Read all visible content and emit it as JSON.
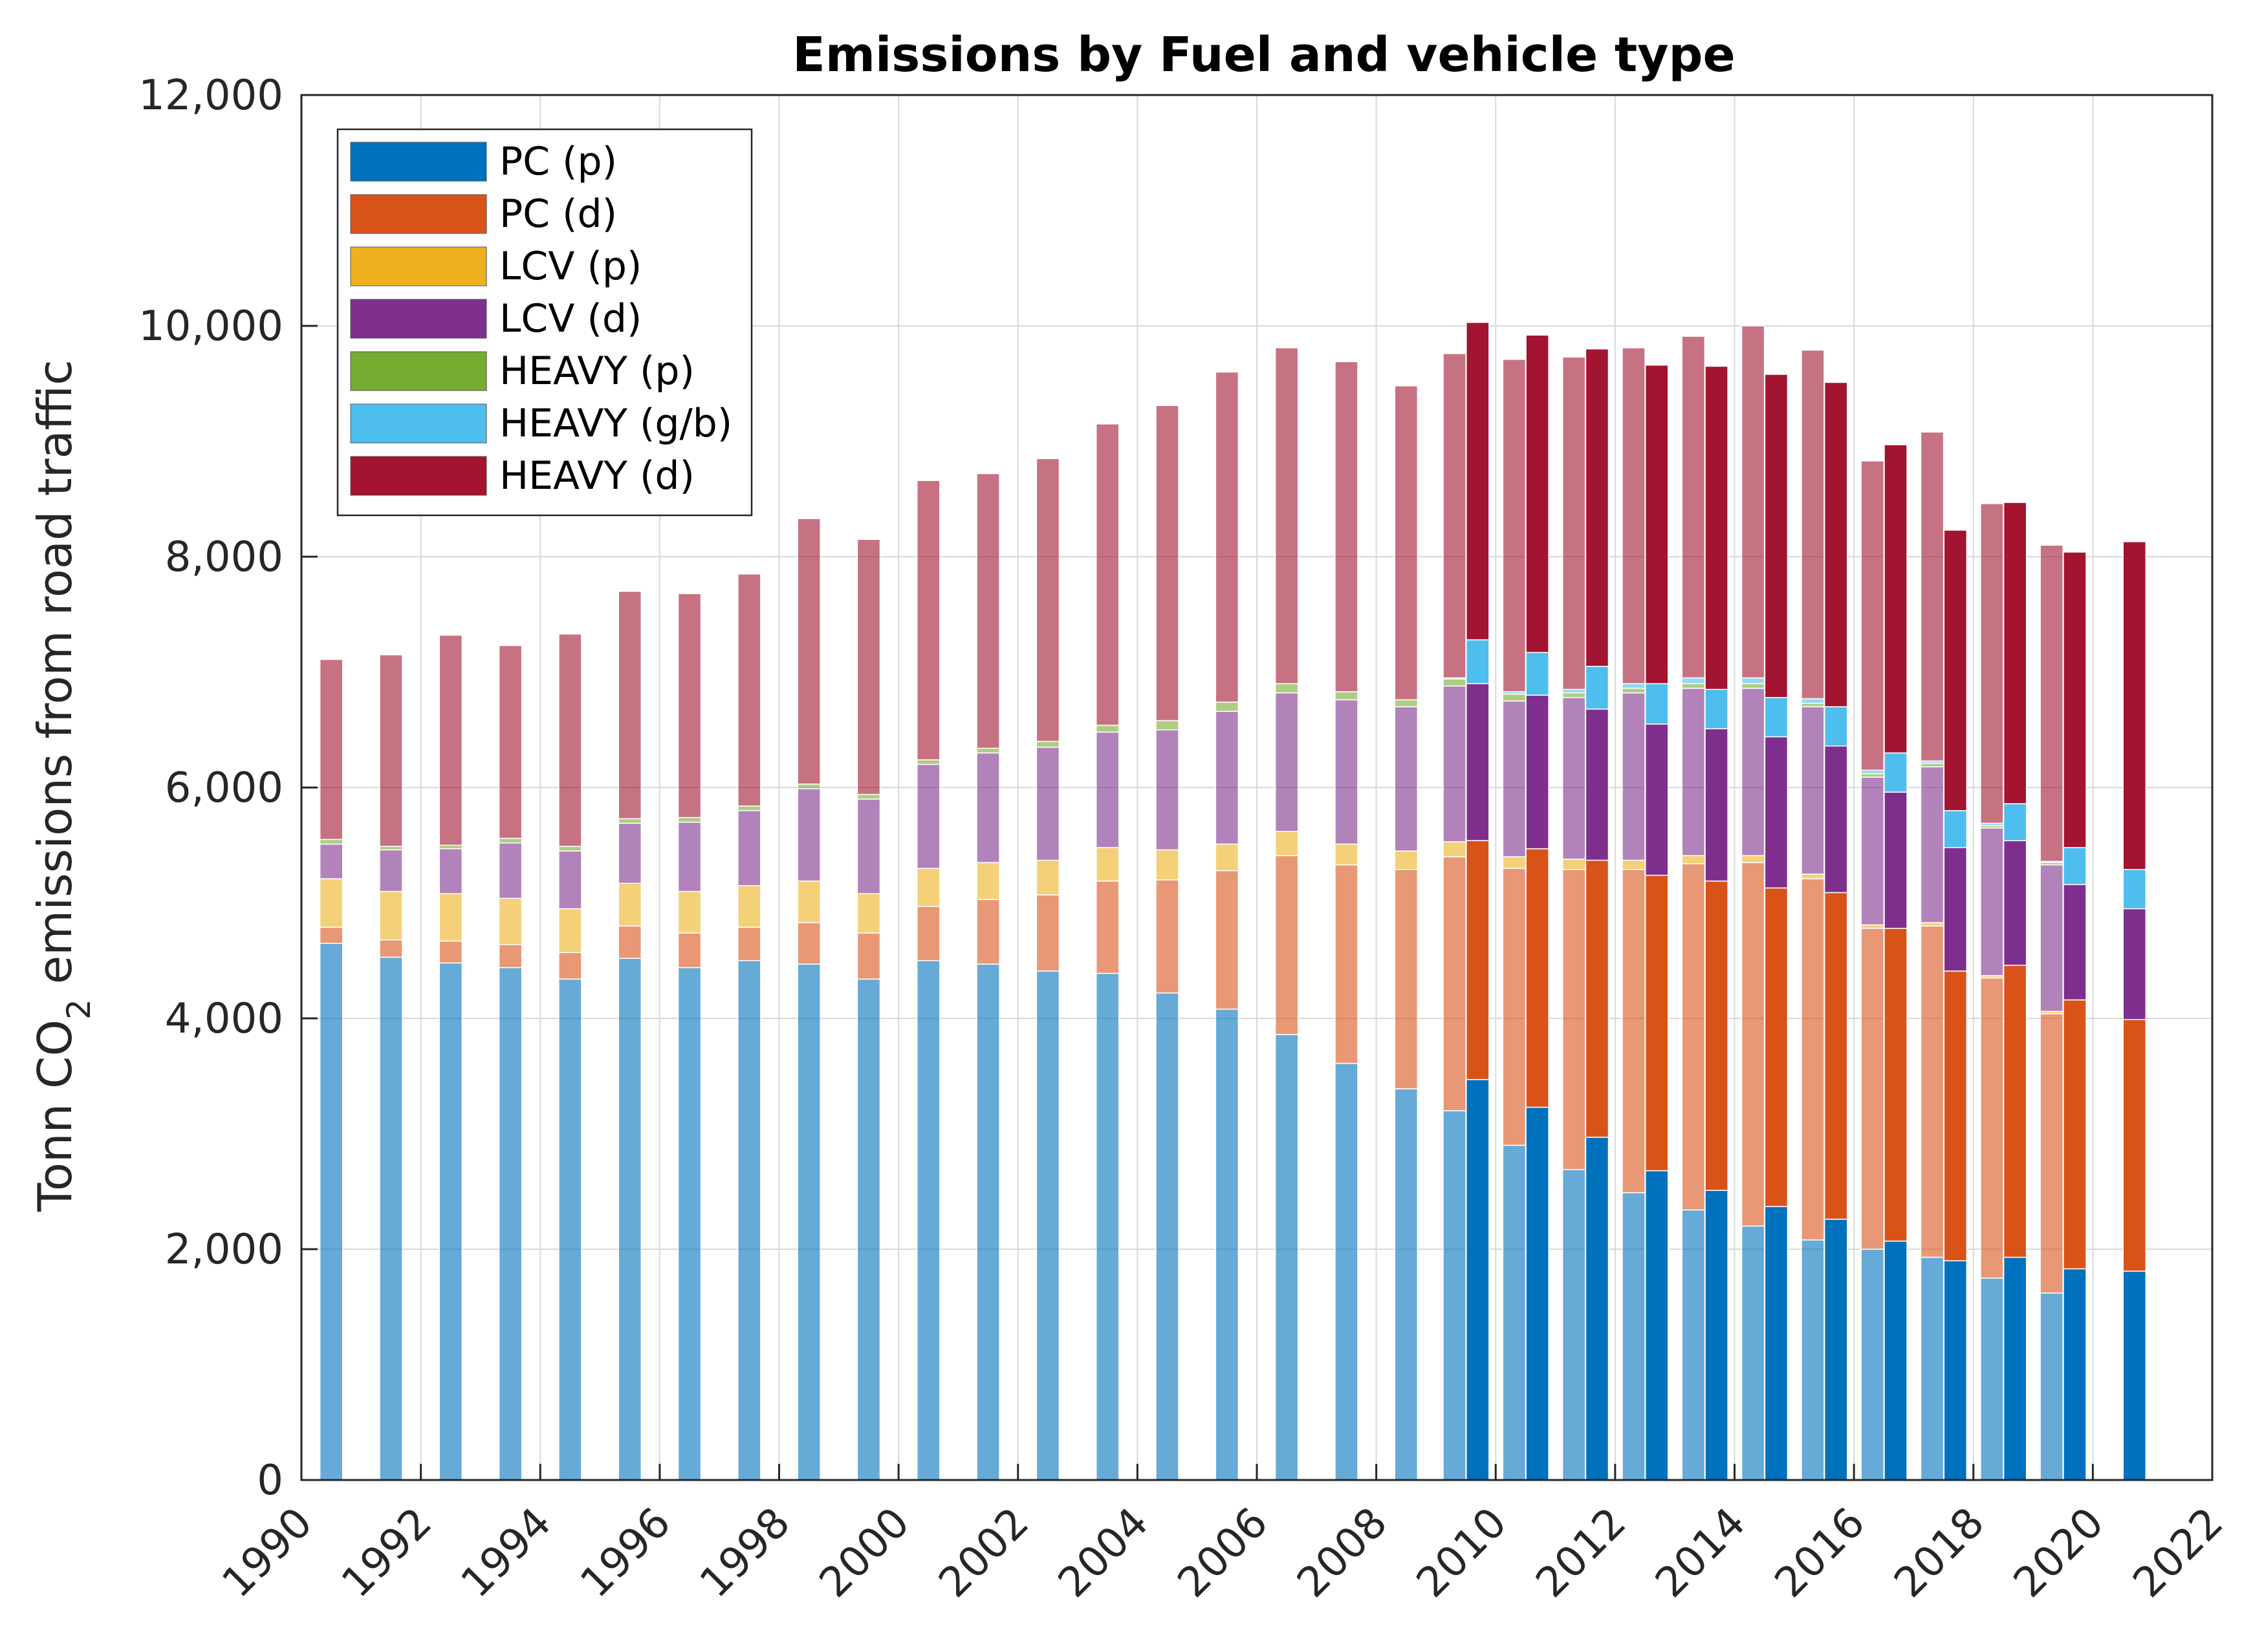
{
  "chart_data": {
    "type": "bar",
    "stacked": true,
    "title": "Emissions by Fuel and vehicle type",
    "xlabel": "",
    "ylabel": "Tonn CO",
    "ylabel_sub": "2",
    "ylabel_rest": " emissions from road traffic",
    "xlim": [
      1990,
      2022
    ],
    "ylim": [
      0,
      12000
    ],
    "x_ticks": [
      "1990",
      "1992",
      "1994",
      "1996",
      "1998",
      "2000",
      "2002",
      "2004",
      "2006",
      "2008",
      "2010",
      "2012",
      "2014",
      "2016",
      "2018",
      "2020",
      "2022"
    ],
    "y_ticks": [
      "0",
      "2,000",
      "4,000",
      "6,000",
      "8,000",
      "10,000",
      "12,000"
    ],
    "grid": true,
    "legend_position": "top-left",
    "series": [
      {
        "name": "PC (p)",
        "color": "#0072BD"
      },
      {
        "name": "PC (d)",
        "color": "#D95319"
      },
      {
        "name": "LCV (p)",
        "color": "#EDB120"
      },
      {
        "name": "LCV (d)",
        "color": "#7E2F8E"
      },
      {
        "name": "HEAVY (p)",
        "color": "#77AC30"
      },
      {
        "name": "HEAVY (g/b)",
        "color": "#4DBEEE"
      },
      {
        "name": "HEAVY (d)",
        "color": "#A2142F"
      }
    ],
    "groups": [
      {
        "name": "faded bars (years 1990-2019)",
        "opacity": 0.6,
        "years": [
          1990,
          1991,
          1992,
          1993,
          1994,
          1995,
          1996,
          1997,
          1998,
          1999,
          2000,
          2001,
          2002,
          2003,
          2004,
          2005,
          2006,
          2007,
          2008,
          2009,
          2010,
          2011,
          2012,
          2013,
          2014,
          2015,
          2016,
          2017,
          2018,
          2019
        ],
        "values": {
          "PC (p)": [
            4650,
            4530,
            4480,
            4440,
            4340,
            4520,
            4440,
            4500,
            4470,
            4340,
            4500,
            4470,
            4410,
            4390,
            4220,
            4080,
            3860,
            3610,
            3390,
            3200,
            2900,
            2690,
            2490,
            2340,
            2200,
            2080,
            2000,
            1930,
            1750,
            1620
          ],
          "PC (d)": [
            140,
            150,
            190,
            200,
            230,
            280,
            300,
            290,
            360,
            400,
            470,
            560,
            660,
            800,
            980,
            1200,
            1550,
            1720,
            1900,
            2200,
            2400,
            2600,
            2800,
            3000,
            3150,
            3130,
            2780,
            2870,
            2600,
            2420
          ],
          "LCV (p)": [
            420,
            420,
            410,
            400,
            380,
            370,
            360,
            360,
            360,
            340,
            330,
            320,
            300,
            290,
            260,
            230,
            210,
            180,
            160,
            130,
            100,
            90,
            80,
            70,
            60,
            40,
            30,
            30,
            20,
            20
          ],
          "LCV (d)": [
            300,
            360,
            390,
            480,
            500,
            520,
            600,
            650,
            800,
            820,
            900,
            950,
            980,
            1000,
            1040,
            1150,
            1200,
            1250,
            1250,
            1350,
            1350,
            1400,
            1450,
            1450,
            1450,
            1450,
            1280,
            1350,
            1280,
            1270
          ],
          "HEAVY (p)": [
            40,
            30,
            30,
            40,
            40,
            40,
            40,
            40,
            40,
            40,
            40,
            40,
            50,
            60,
            80,
            80,
            80,
            70,
            60,
            60,
            60,
            40,
            40,
            40,
            40,
            30,
            30,
            30,
            20,
            20
          ],
          "HEAVY (g/b)": [
            0,
            0,
            0,
            0,
            0,
            0,
            0,
            0,
            0,
            0,
            0,
            0,
            0,
            0,
            0,
            0,
            0,
            0,
            0,
            10,
            20,
            30,
            40,
            50,
            50,
            40,
            30,
            20,
            20,
            10
          ],
          "HEAVY (d)": [
            1560,
            1660,
            1820,
            1670,
            1840,
            1970,
            1940,
            2010,
            2300,
            2210,
            2420,
            2380,
            2450,
            2610,
            2730,
            2860,
            2910,
            2860,
            2720,
            2810,
            2880,
            2880,
            2910,
            2960,
            3050,
            3020,
            2680,
            2850,
            2770,
            2740
          ]
        }
      },
      {
        "name": "solid bars (years 2010-2021)",
        "opacity": 1.0,
        "years": [
          2010,
          2011,
          2012,
          2013,
          2014,
          2015,
          2016,
          2017,
          2018,
          2019,
          2020,
          2021
        ],
        "values": {
          "PC (p)": [
            3470,
            3230,
            2970,
            2680,
            2510,
            2370,
            2260,
            2070,
            1900,
            1930,
            1830,
            1810
          ],
          "PC (d)": [
            2070,
            2240,
            2400,
            2560,
            2680,
            2760,
            2830,
            2710,
            2510,
            2530,
            2330,
            2180
          ],
          "LCV (p)": [
            0,
            0,
            0,
            0,
            0,
            0,
            0,
            0,
            0,
            0,
            0,
            0
          ],
          "LCV (d)": [
            1360,
            1330,
            1310,
            1310,
            1320,
            1310,
            1270,
            1180,
            1070,
            1080,
            1000,
            960
          ],
          "HEAVY (p)": [
            0,
            0,
            0,
            0,
            0,
            0,
            0,
            0,
            0,
            0,
            0,
            0
          ],
          "HEAVY (g/b)": [
            380,
            370,
            370,
            350,
            340,
            340,
            340,
            340,
            320,
            320,
            320,
            340
          ],
          "HEAVY (d)": [
            2750,
            2750,
            2750,
            2760,
            2800,
            2800,
            2810,
            2670,
            2430,
            2610,
            2560,
            2840
          ]
        }
      }
    ]
  }
}
